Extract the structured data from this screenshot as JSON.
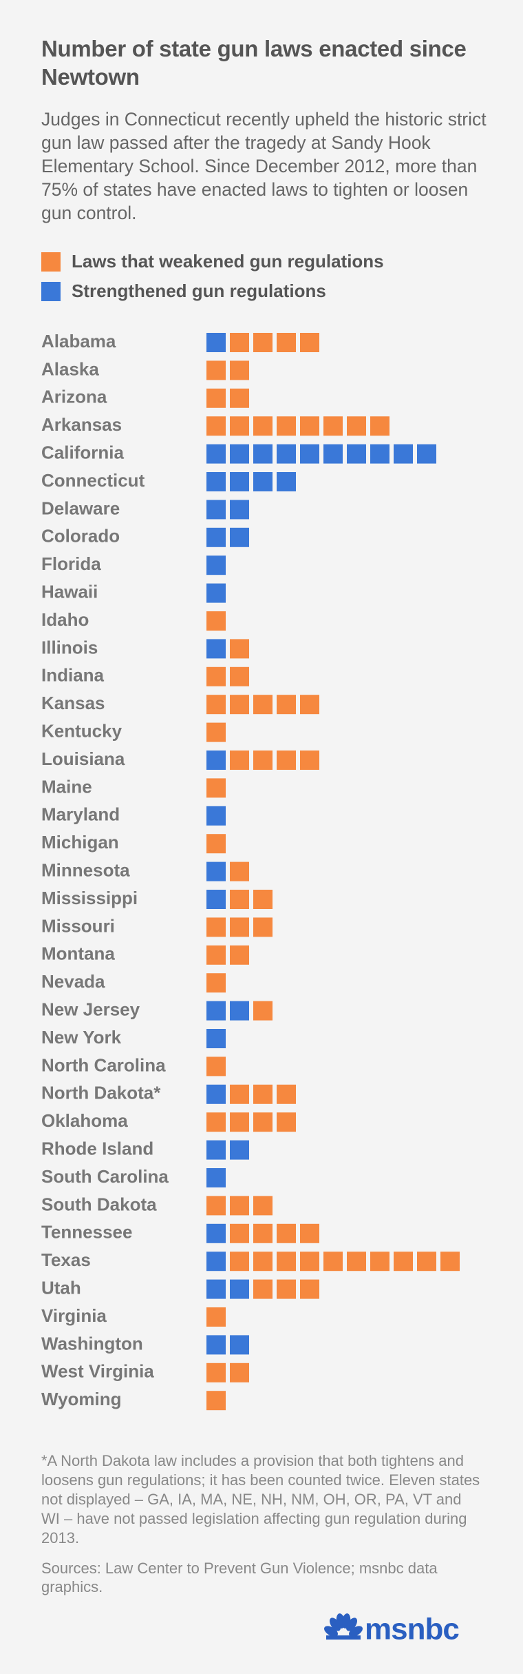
{
  "chart_data": {
    "type": "unit",
    "title": "Number of state gun laws enacted since Newtown",
    "subtitle": "Judges in Connecticut recently upheld the historic strict gun law passed after the tragedy at Sandy Hook Elementary School. Since December 2012, more than 75% of states have enacted laws to tighten or loosen gun control.",
    "categories": [
      "Alabama",
      "Alaska",
      "Arizona",
      "Arkansas",
      "California",
      "Connecticut",
      "Delaware",
      "Colorado",
      "Florida",
      "Hawaii",
      "Idaho",
      "Illinois",
      "Indiana",
      "Kansas",
      "Kentucky",
      "Louisiana",
      "Maine",
      "Maryland",
      "Michigan",
      "Minnesota",
      "Mississippi",
      "Missouri",
      "Montana",
      "Nevada",
      "New Jersey",
      "New York",
      "North Carolina",
      "North Dakota*",
      "Oklahoma",
      "Rhode Island",
      "South Carolina",
      "South Dakota",
      "Tennessee",
      "Texas",
      "Utah",
      "Virginia",
      "Washington",
      "West Virginia",
      "Wyoming"
    ],
    "series": [
      {
        "name": "Laws that weakened gun regulations",
        "color": "#f6883f",
        "values": [
          4,
          2,
          2,
          8,
          0,
          0,
          0,
          0,
          0,
          0,
          1,
          1,
          2,
          5,
          1,
          4,
          1,
          0,
          1,
          1,
          2,
          3,
          2,
          1,
          1,
          0,
          1,
          3,
          4,
          0,
          0,
          3,
          4,
          10,
          3,
          1,
          0,
          2,
          1
        ]
      },
      {
        "name": "Strengthened gun regulations",
        "color": "#3a78d8",
        "values": [
          1,
          0,
          0,
          0,
          10,
          4,
          2,
          2,
          1,
          1,
          0,
          1,
          0,
          0,
          0,
          1,
          0,
          1,
          0,
          1,
          1,
          0,
          0,
          0,
          2,
          1,
          0,
          1,
          0,
          2,
          1,
          0,
          1,
          1,
          2,
          0,
          2,
          0,
          0
        ]
      }
    ]
  },
  "footer": {
    "note": "*A North Dakota law includes a provision that both tightens and loosens gun regulations; it has been counted twice. Eleven states not displayed – GA, IA, MA, NE, NH, NM, OH, OR, PA, VT and WI – have not passed legislation affecting gun regulation during 2013.",
    "sources": "Sources: Law Center to Prevent Gun Violence; msnbc data graphics.",
    "logo": "msnbc"
  }
}
